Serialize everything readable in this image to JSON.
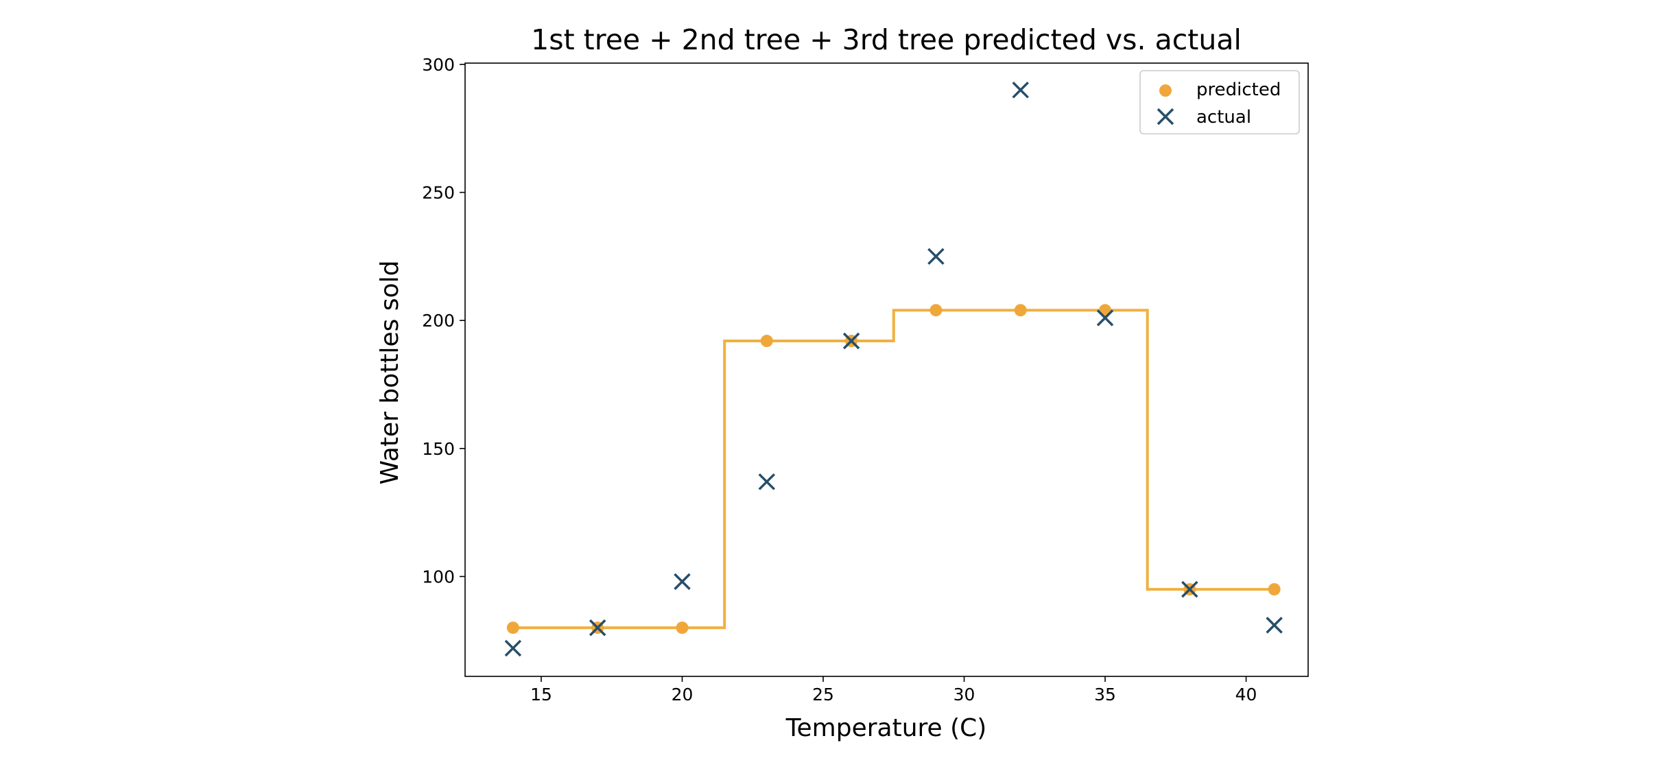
{
  "chart_data": {
    "type": "scatter",
    "title": "1st tree + 2nd tree + 3rd tree predicted vs. actual",
    "xlabel": "Temperature (C)",
    "ylabel": "Water bottles sold",
    "xlim": [
      12.3,
      42.2
    ],
    "ylim": [
      61,
      300.5
    ],
    "x_ticks": [
      15,
      20,
      25,
      30,
      35,
      40
    ],
    "y_ticks": [
      100,
      150,
      200,
      250,
      300
    ],
    "grid": false,
    "legend_position": "top-right",
    "series": [
      {
        "name": "predicted",
        "marker": "circle",
        "color": "#f0a73a",
        "x": [
          14,
          17,
          20,
          23,
          26,
          29,
          32,
          35,
          38,
          41
        ],
        "y": [
          80,
          80,
          80,
          192,
          192,
          204,
          204,
          204,
          95,
          95
        ]
      },
      {
        "name": "actual",
        "marker": "x",
        "color": "#264e6a",
        "x": [
          14,
          17,
          20,
          23,
          26,
          29,
          32,
          35,
          38,
          41
        ],
        "y": [
          72,
          80,
          98,
          137,
          192,
          225,
          290,
          201,
          95,
          81
        ]
      }
    ],
    "step_line": {
      "color": "#f0b040",
      "x": [
        14,
        21.5,
        21.5,
        27.5,
        27.5,
        36.5,
        36.5,
        41
      ],
      "y": [
        80,
        80,
        192,
        192,
        204,
        204,
        95,
        95
      ]
    }
  }
}
